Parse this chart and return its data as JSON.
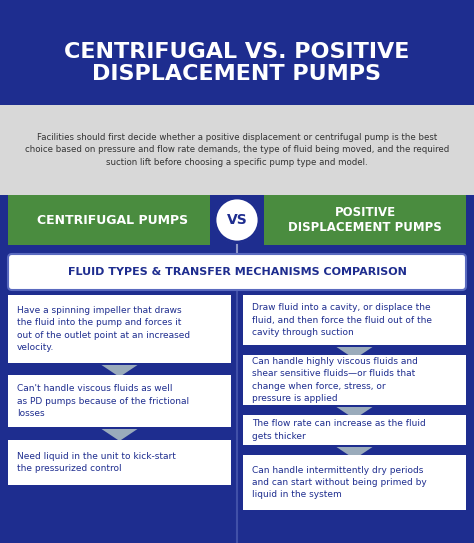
{
  "title_line1": "CENTRIFUGAL VS. POSITIVE",
  "title_line2": "DISPLACEMENT PUMPS",
  "title_bg": "#1e2d8f",
  "title_fg": "#ffffff",
  "subtitle": "Facilities should first decide whether a positive displacement or centrifugal pump is the best\nchoice based on pressure and flow rate demands, the type of fluid being moved, and the required\nsuction lift before choosing a specific pump type and model.",
  "subtitle_bg": "#d8d8d8",
  "subtitle_fg": "#333333",
  "left_label": "CENTRIFUGAL PUMPS",
  "right_label": "POSITIVE\nDISPLACEMENT PUMPS",
  "vs_label": "VS",
  "green_color": "#4a8c3f",
  "green_fg": "#ffffff",
  "section_label": "FLUID TYPES & TRANSFER MECHANISMS COMPARISON",
  "section_bg": "#ffffff",
  "section_fg": "#1e2d8f",
  "section_border": "#5a6abf",
  "main_bg": "#1e2d8f",
  "card_bg": "#ffffff",
  "card_fg": "#1e2d8f",
  "arrow_color": "#9aabbb",
  "divider_color": "#4a5aaf",
  "left_cards": [
    "Have a spinning impeller that draws\nthe fluid into the pump and forces it\nout of the outlet point at an increased\nvelocity.",
    "Can't handle viscous fluids as well\nas PD pumps because of the frictional\nlosses",
    "Need liquid in the unit to kick-start\nthe pressurized control"
  ],
  "right_cards": [
    "Draw fluid into a cavity, or displace the\nfluid, and then force the fluid out of the\ncavity through suction",
    "Can handle highly viscous fluids and\nshear sensitive fluids—or fluids that\nchange when force, stress, or\npressure is applied",
    "The flow rate can increase as the fluid\ngets thicker",
    "Can handle intermittently dry periods\nand can start without being primed by\nliquid in the system"
  ]
}
